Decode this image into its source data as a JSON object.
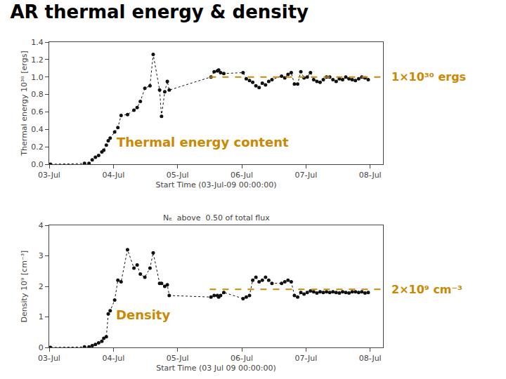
{
  "chart_data": [
    {
      "type": "line",
      "title": "AR thermal energy & density",
      "x_label": "Start Time (03-Jul-09 00:00:00)",
      "y_label": "Thermal energy 10³⁰ [ergs]",
      "x": [
        0.02,
        0.55,
        0.62,
        0.67,
        0.72,
        0.77,
        0.82,
        0.85,
        0.89,
        0.92,
        0.95,
        1.02,
        1.07,
        1.12,
        1.22,
        1.32,
        1.37,
        1.42,
        1.49,
        1.57,
        1.62,
        1.72,
        1.75,
        1.8,
        1.84,
        1.87,
        2.52,
        2.57,
        2.62,
        2.64,
        2.67,
        2.72,
        3.02,
        3.07,
        3.12,
        3.17,
        3.22,
        3.27,
        3.32,
        3.37,
        3.42,
        3.47,
        3.62,
        3.67,
        3.72,
        3.77,
        3.82,
        3.87,
        3.92,
        3.97,
        4.02,
        4.07,
        4.12,
        4.17,
        4.22,
        4.27,
        4.32,
        4.37,
        4.42,
        4.47,
        4.52,
        4.57,
        4.62,
        4.67,
        4.72,
        4.77,
        4.82,
        4.87,
        4.92,
        4.97
      ],
      "values": [
        0.0,
        0.01,
        0.01,
        0.05,
        0.08,
        0.1,
        0.14,
        0.16,
        0.22,
        0.27,
        0.3,
        0.37,
        0.42,
        0.56,
        0.57,
        0.62,
        0.65,
        0.72,
        0.87,
        0.9,
        1.26,
        0.85,
        0.55,
        0.83,
        0.95,
        0.85,
        1.0,
        1.06,
        1.07,
        1.08,
        1.05,
        1.04,
        1.05,
        0.98,
        0.96,
        0.94,
        0.9,
        0.88,
        0.93,
        0.91,
        0.95,
        0.97,
        1.01,
        0.99,
        1.03,
        1.05,
        0.92,
        0.92,
        1.06,
        0.99,
        1.0,
        1.05,
        0.97,
        0.95,
        0.94,
        0.97,
        1.0,
        1.0,
        0.97,
        0.95,
        0.98,
        0.97,
        1.0,
        0.98,
        0.97,
        0.96,
        0.98,
        1.0,
        0.99,
        0.97
      ],
      "color": "#111111",
      "line_style": "dotted",
      "marker": "circle",
      "xlim": [
        0,
        5.2
      ],
      "xticks": [
        {
          "value": 0,
          "label": "03-Jul"
        },
        {
          "value": 1,
          "label": "04-Jul"
        },
        {
          "value": 2,
          "label": "05-Jul"
        },
        {
          "value": 3,
          "label": "06-Jul"
        },
        {
          "value": 4,
          "label": "07-Jul"
        },
        {
          "value": 5,
          "label": "08-Jul"
        }
      ],
      "ylim": [
        0.0,
        1.4
      ],
      "yticks": [
        {
          "value": 0,
          "label": "0.0"
        },
        0.2,
        0.4,
        0.6,
        0.8,
        {
          "value": 1,
          "label": "1.0"
        },
        1.2,
        1.4
      ],
      "grid": false,
      "annotation": {
        "text": "Thermal energy content",
        "color": "#cc8800"
      },
      "reference_line": {
        "y": 1.0,
        "x_start": 2.5,
        "color": "#cc8800",
        "line_style": "dashed",
        "label": "1×10³⁰ ergs"
      }
    },
    {
      "type": "line",
      "title": "Nₑ  above  0.50 of total flux",
      "x_label": "Start Time (03 Jul 09 00:00:00)",
      "y_label": "Density 10⁹ [cm⁻³]",
      "x": [
        0.02,
        0.55,
        0.62,
        0.67,
        0.72,
        0.77,
        0.82,
        0.85,
        0.89,
        0.92,
        0.95,
        1.02,
        1.07,
        1.12,
        1.22,
        1.32,
        1.37,
        1.42,
        1.49,
        1.57,
        1.62,
        1.72,
        1.75,
        1.8,
        1.84,
        1.87,
        2.52,
        2.57,
        2.62,
        2.64,
        2.67,
        2.72,
        3.02,
        3.07,
        3.12,
        3.17,
        3.22,
        3.27,
        3.32,
        3.37,
        3.42,
        3.47,
        3.62,
        3.67,
        3.72,
        3.77,
        3.82,
        3.87,
        3.92,
        3.97,
        4.02,
        4.07,
        4.12,
        4.17,
        4.22,
        4.27,
        4.32,
        4.37,
        4.42,
        4.47,
        4.52,
        4.57,
        4.62,
        4.67,
        4.72,
        4.77,
        4.82,
        4.87,
        4.92,
        4.97
      ],
      "values": [
        0.0,
        0.02,
        0.02,
        0.06,
        0.1,
        0.15,
        0.2,
        0.3,
        0.35,
        1.1,
        1.2,
        1.55,
        2.2,
        2.15,
        3.2,
        2.6,
        2.7,
        2.4,
        2.3,
        2.6,
        3.1,
        2.1,
        2.1,
        2.0,
        2.05,
        1.7,
        1.65,
        1.7,
        1.7,
        1.65,
        1.7,
        1.8,
        1.6,
        1.65,
        1.7,
        2.2,
        2.3,
        2.15,
        2.2,
        2.3,
        2.2,
        2.1,
        2.1,
        2.15,
        2.2,
        2.15,
        1.7,
        1.65,
        1.8,
        1.75,
        1.8,
        1.85,
        1.82,
        1.78,
        1.82,
        1.8,
        1.82,
        1.8,
        1.82,
        1.8,
        1.78,
        1.82,
        1.8,
        1.78,
        1.82,
        1.82,
        1.8,
        1.82,
        1.78,
        1.8
      ],
      "color": "#111111",
      "line_style": "dotted",
      "marker": "circle",
      "xlim": [
        0,
        5.2
      ],
      "xticks": [
        {
          "value": 0,
          "label": "03-Jul"
        },
        {
          "value": 1,
          "label": "04-Jul"
        },
        {
          "value": 2,
          "label": "05-Jul"
        },
        {
          "value": 3,
          "label": "06-Jul"
        },
        {
          "value": 4,
          "label": "07-Jul"
        },
        {
          "value": 5,
          "label": "08-Jul"
        }
      ],
      "ylim": [
        0.0,
        4.0
      ],
      "yticks": [
        0,
        1,
        2,
        3,
        4
      ],
      "grid": false,
      "annotation": {
        "text": "Density",
        "color": "#cc8800"
      },
      "reference_line": {
        "y": 1.9,
        "x_start": 2.5,
        "color": "#cc8800",
        "line_style": "dashed",
        "label": "2×10⁹ cm⁻³"
      }
    }
  ]
}
